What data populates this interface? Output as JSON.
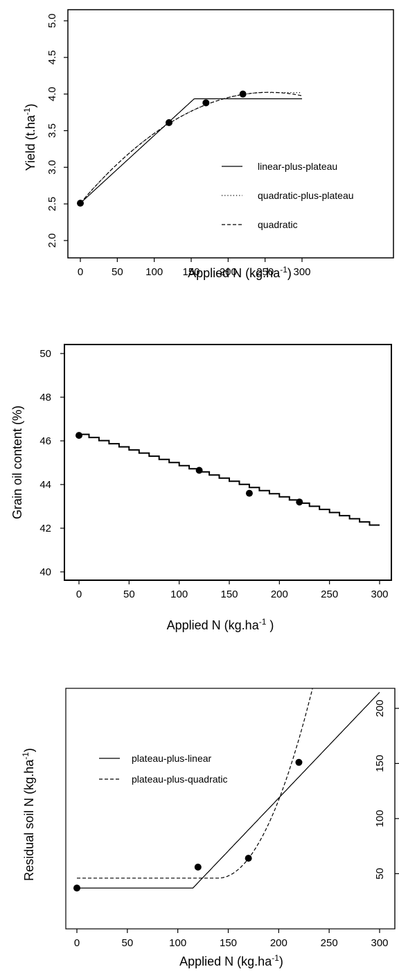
{
  "chart_data": [
    {
      "type": "line",
      "xlabel": "Applied N (kg.ha",
      "xlabel_sup": "-1",
      "xlabel_tail": ")",
      "ylabel": "Yield (t.ha",
      "ylabel_sup": "-1",
      "ylabel_tail": ")",
      "xlim": [
        0,
        300
      ],
      "ylim": [
        2.0,
        5.0
      ],
      "xticks": [
        0,
        50,
        100,
        150,
        200,
        250,
        300
      ],
      "yticks": [
        2.0,
        2.5,
        3.0,
        3.5,
        4.0,
        4.5,
        5.0
      ],
      "ytick_labels": [
        "2.0",
        "2.5",
        "3.0",
        "3.5",
        "4.0",
        "4.5",
        "5.0"
      ],
      "y_tick_labels_rotated": true,
      "grid": false,
      "legend_position": "lower-right",
      "observed": {
        "x": [
          0,
          120,
          170,
          220
        ],
        "y": [
          2.51,
          3.61,
          3.88,
          4.0
        ]
      },
      "series": [
        {
          "name": "linear-plus-plateau",
          "style": "solid",
          "model": "linear-plateau",
          "intercept": 2.51,
          "slope": 0.00925,
          "break_x": 154,
          "plateau": 3.935,
          "x_range": [
            0,
            300
          ]
        },
        {
          "name": "quadratic-plus-plateau",
          "style": "dotted",
          "model": "quadratic-plateau",
          "a": 2.51,
          "b": 0.01185,
          "c": -2.32e-05,
          "break_x": 255,
          "plateau": 4.02,
          "x_range": [
            0,
            300
          ]
        },
        {
          "name": "quadratic",
          "style": "dashed",
          "model": "quadratic",
          "a": 2.51,
          "b": 0.01185,
          "c": -2.32e-05,
          "x_range": [
            0,
            300
          ]
        }
      ]
    },
    {
      "type": "line",
      "xlabel": "Applied N (kg.ha",
      "xlabel_sup": "-1",
      "xlabel_tail": " )",
      "ylabel": "Grain oil content (%)",
      "xlim": [
        0,
        300
      ],
      "ylim": [
        40,
        50
      ],
      "xticks": [
        0,
        50,
        100,
        150,
        200,
        250,
        300
      ],
      "yticks": [
        40,
        42,
        44,
        46,
        48,
        50
      ],
      "ytick_labels": [
        "40",
        "42",
        "44",
        "46",
        "48",
        "50"
      ],
      "grid": false,
      "observed": {
        "x": [
          0,
          120,
          170,
          220
        ],
        "y": [
          46.25,
          44.65,
          43.6,
          43.2
        ]
      },
      "series": [
        {
          "style": "stepped-solid",
          "model": "linear",
          "intercept": 46.3,
          "slope": -0.01433,
          "x_range": [
            0,
            300
          ]
        }
      ]
    },
    {
      "type": "line",
      "xlabel": "Applied N (kg.ha",
      "xlabel_sup": "-1",
      "xlabel_tail": ")",
      "ylabel": "Residual soil N (kg.ha",
      "ylabel_sup": "-1",
      "ylabel_tail": ")",
      "xlim": [
        0,
        300
      ],
      "ylim": [
        10,
        210
      ],
      "xticks": [
        0,
        50,
        100,
        150,
        200,
        250,
        300
      ],
      "yticks": [
        50,
        100,
        150,
        200
      ],
      "ytick_labels": [
        "50",
        "100",
        "150",
        "200"
      ],
      "y_tick_labels_rotated": true,
      "y_axis_right": true,
      "grid": false,
      "legend_position": "upper-left",
      "observed": {
        "x": [
          0,
          120,
          170,
          220
        ],
        "y": [
          37,
          56,
          64,
          151
        ]
      },
      "series": [
        {
          "name": "plateau-plus-linear",
          "style": "solid",
          "model": "plateau-linear",
          "plateau": 37,
          "break_x": 115,
          "slope": 0.96,
          "x_range": [
            0,
            300
          ]
        },
        {
          "name": "plateau-plus-quadratic",
          "style": "dashed",
          "model": "plateau-quadratic",
          "plateau": 46,
          "break_x": 140,
          "coef": 0.0197,
          "x_range": [
            0,
            300
          ]
        }
      ]
    }
  ]
}
